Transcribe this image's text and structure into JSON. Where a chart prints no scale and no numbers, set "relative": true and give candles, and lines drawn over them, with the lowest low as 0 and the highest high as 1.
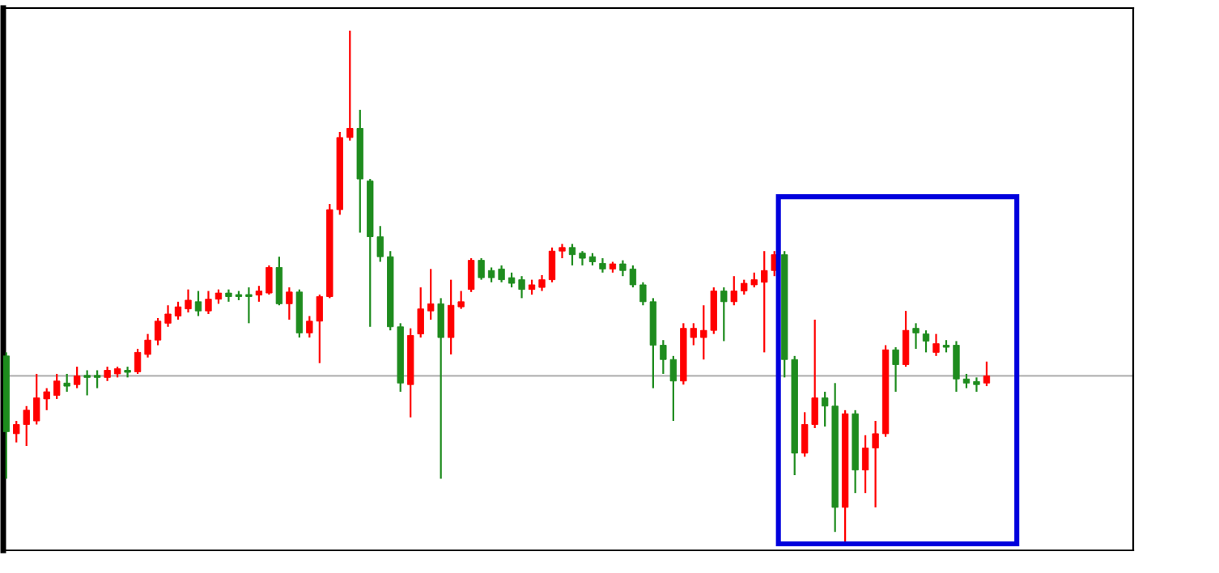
{
  "chart_data": {
    "type": "candlestick",
    "relative": true,
    "categories": [
      null,
      null,
      null,
      null,
      null,
      null,
      null,
      null,
      null,
      null,
      null,
      null,
      null,
      null,
      null,
      null,
      null,
      null,
      null,
      null,
      null,
      null,
      null,
      null,
      null,
      null,
      null,
      null,
      null,
      null,
      null,
      null,
      null,
      null,
      null,
      null,
      null,
      null,
      null,
      null,
      null,
      null,
      null,
      null,
      null,
      null,
      null,
      null,
      null,
      null,
      null,
      null,
      null,
      null,
      null,
      null,
      null,
      null,
      null,
      null,
      null,
      null,
      null,
      null,
      null,
      null,
      null,
      null,
      null,
      null,
      null,
      null,
      null,
      null,
      null,
      null,
      null,
      null,
      null,
      null,
      null,
      null,
      null,
      null,
      null,
      null,
      null,
      null,
      null,
      null,
      null,
      null,
      null,
      null,
      null,
      null,
      null,
      null
    ],
    "ohlc": [
      [
        0.364,
        0.371,
        0.124,
        0.216
      ],
      [
        0.212,
        0.237,
        0.195,
        0.23
      ],
      [
        0.23,
        0.266,
        0.188,
        0.258
      ],
      [
        0.237,
        0.329,
        0.23,
        0.282
      ],
      [
        0.28,
        0.301,
        0.258,
        0.294
      ],
      [
        0.287,
        0.329,
        0.28,
        0.315
      ],
      [
        0.311,
        0.329,
        0.294,
        0.305
      ],
      [
        0.308,
        0.343,
        0.301,
        0.325
      ],
      [
        0.326,
        0.336,
        0.287,
        0.322
      ],
      [
        0.326,
        0.336,
        0.301,
        0.322
      ],
      [
        0.322,
        0.343,
        0.315,
        0.336
      ],
      [
        0.329,
        0.343,
        0.322,
        0.339
      ],
      [
        0.336,
        0.343,
        0.322,
        0.332
      ],
      [
        0.333,
        0.378,
        0.329,
        0.371
      ],
      [
        0.367,
        0.407,
        0.361,
        0.395
      ],
      [
        0.395,
        0.438,
        0.385,
        0.432
      ],
      [
        0.428,
        0.463,
        0.421,
        0.446
      ],
      [
        0.442,
        0.47,
        0.435,
        0.46
      ],
      [
        0.456,
        0.494,
        0.449,
        0.473
      ],
      [
        0.47,
        0.491,
        0.442,
        0.452
      ],
      [
        0.452,
        0.491,
        0.446,
        0.475
      ],
      [
        0.475,
        0.494,
        0.466,
        0.487
      ],
      [
        0.487,
        0.494,
        0.47,
        0.48
      ],
      [
        0.484,
        0.491,
        0.473,
        0.48
      ],
      [
        0.484,
        0.498,
        0.428,
        0.48
      ],
      [
        0.483,
        0.501,
        0.47,
        0.491
      ],
      [
        0.487,
        0.541,
        0.484,
        0.537
      ],
      [
        0.537,
        0.558,
        0.463,
        0.466
      ],
      [
        0.466,
        0.498,
        0.435,
        0.489
      ],
      [
        0.489,
        0.494,
        0.4,
        0.409
      ],
      [
        0.409,
        0.442,
        0.4,
        0.432
      ],
      [
        0.432,
        0.484,
        0.35,
        0.48
      ],
      [
        0.48,
        0.661,
        0.477,
        0.65
      ],
      [
        0.65,
        0.802,
        0.64,
        0.791
      ],
      [
        0.791,
        1.0,
        0.785,
        0.809
      ],
      [
        0.809,
        0.845,
        0.605,
        0.71
      ],
      [
        0.706,
        0.71,
        0.421,
        0.597
      ],
      [
        0.597,
        0.618,
        0.548,
        0.558
      ],
      [
        0.558,
        0.569,
        0.414,
        0.421
      ],
      [
        0.421,
        0.428,
        0.294,
        0.311
      ],
      [
        0.308,
        0.418,
        0.244,
        0.404
      ],
      [
        0.407,
        0.498,
        0.4,
        0.456
      ],
      [
        0.452,
        0.534,
        0.435,
        0.466
      ],
      [
        0.466,
        0.477,
        0.124,
        0.4
      ],
      [
        0.4,
        0.513,
        0.367,
        0.463
      ],
      [
        0.46,
        0.491,
        0.456,
        0.47
      ],
      [
        0.494,
        0.555,
        0.489,
        0.551
      ],
      [
        0.551,
        0.555,
        0.513,
        0.517
      ],
      [
        0.531,
        0.537,
        0.508,
        0.517
      ],
      [
        0.534,
        0.541,
        0.508,
        0.513
      ],
      [
        0.517,
        0.527,
        0.498,
        0.506
      ],
      [
        0.513,
        0.52,
        0.477,
        0.494
      ],
      [
        0.494,
        0.513,
        0.484,
        0.503
      ],
      [
        0.498,
        0.522,
        0.491,
        0.513
      ],
      [
        0.513,
        0.576,
        0.508,
        0.569
      ],
      [
        0.569,
        0.583,
        0.555,
        0.576
      ],
      [
        0.576,
        0.583,
        0.541,
        0.562
      ],
      [
        0.565,
        0.569,
        0.541,
        0.555
      ],
      [
        0.558,
        0.565,
        0.541,
        0.548
      ],
      [
        0.545,
        0.555,
        0.527,
        0.534
      ],
      [
        0.534,
        0.548,
        0.527,
        0.544
      ],
      [
        0.544,
        0.551,
        0.52,
        0.531
      ],
      [
        0.534,
        0.541,
        0.498,
        0.503
      ],
      [
        0.503,
        0.508,
        0.463,
        0.47
      ],
      [
        0.47,
        0.477,
        0.301,
        0.385
      ],
      [
        0.385,
        0.395,
        0.329,
        0.357
      ],
      [
        0.357,
        0.364,
        0.237,
        0.315
      ],
      [
        0.315,
        0.428,
        0.308,
        0.418
      ],
      [
        0.4,
        0.428,
        0.385,
        0.418
      ],
      [
        0.4,
        0.463,
        0.357,
        0.414
      ],
      [
        0.414,
        0.498,
        0.407,
        0.491
      ],
      [
        0.491,
        0.498,
        0.393,
        0.47
      ],
      [
        0.47,
        0.52,
        0.463,
        0.491
      ],
      [
        0.491,
        0.513,
        0.484,
        0.506
      ],
      [
        0.503,
        0.527,
        0.498,
        0.513
      ],
      [
        0.508,
        0.569,
        0.371,
        0.531
      ],
      [
        0.531,
        0.569,
        0.52,
        0.562
      ],
      [
        0.562,
        0.569,
        0.322,
        0.357
      ],
      [
        0.357,
        0.364,
        0.131,
        0.174
      ],
      [
        0.174,
        0.254,
        0.167,
        0.23
      ],
      [
        0.23,
        0.435,
        0.223,
        0.282
      ],
      [
        0.282,
        0.294,
        0.226,
        0.266
      ],
      [
        0.266,
        0.311,
        0.02,
        0.068
      ],
      [
        0.068,
        0.258,
        0.0,
        0.251
      ],
      [
        0.251,
        0.258,
        0.096,
        0.141
      ],
      [
        0.141,
        0.209,
        0.096,
        0.184
      ],
      [
        0.184,
        0.237,
        0.068,
        0.212
      ],
      [
        0.212,
        0.385,
        0.206,
        0.376
      ],
      [
        0.376,
        0.381,
        0.294,
        0.347
      ],
      [
        0.347,
        0.452,
        0.343,
        0.414
      ],
      [
        0.418,
        0.428,
        0.378,
        0.409
      ],
      [
        0.407,
        0.414,
        0.371,
        0.393
      ],
      [
        0.371,
        0.407,
        0.364,
        0.388
      ],
      [
        0.385,
        0.395,
        0.371,
        0.381
      ],
      [
        0.385,
        0.393,
        0.294,
        0.319
      ],
      [
        0.319,
        0.329,
        0.301,
        0.311
      ],
      [
        0.314,
        0.322,
        0.294,
        0.308
      ],
      [
        0.311,
        0.353,
        0.305,
        0.325
      ]
    ],
    "colors": [
      "#1e8c1e",
      "#ff0000",
      "#ff0000",
      "#ff0000",
      "#ff0000",
      "#ff0000",
      "#1e8c1e",
      "#ff0000",
      "#1e8c1e",
      "#1e8c1e",
      "#ff0000",
      "#ff0000",
      "#1e8c1e",
      "#ff0000",
      "#ff0000",
      "#ff0000",
      "#ff0000",
      "#ff0000",
      "#ff0000",
      "#1e8c1e",
      "#ff0000",
      "#ff0000",
      "#1e8c1e",
      "#1e8c1e",
      "#1e8c1e",
      "#ff0000",
      "#ff0000",
      "#1e8c1e",
      "#ff0000",
      "#1e8c1e",
      "#ff0000",
      "#ff0000",
      "#ff0000",
      "#ff0000",
      "#ff0000",
      "#1e8c1e",
      "#1e8c1e",
      "#1e8c1e",
      "#1e8c1e",
      "#1e8c1e",
      "#ff0000",
      "#ff0000",
      "#ff0000",
      "#1e8c1e",
      "#ff0000",
      "#ff0000",
      "#ff0000",
      "#1e8c1e",
      "#1e8c1e",
      "#1e8c1e",
      "#1e8c1e",
      "#1e8c1e",
      "#ff0000",
      "#ff0000",
      "#ff0000",
      "#ff0000",
      "#1e8c1e",
      "#1e8c1e",
      "#1e8c1e",
      "#1e8c1e",
      "#ff0000",
      "#1e8c1e",
      "#1e8c1e",
      "#1e8c1e",
      "#1e8c1e",
      "#1e8c1e",
      "#1e8c1e",
      "#ff0000",
      "#ff0000",
      "#ff0000",
      "#ff0000",
      "#1e8c1e",
      "#ff0000",
      "#ff0000",
      "#ff0000",
      "#ff0000",
      "#ff0000",
      "#1e8c1e",
      "#1e8c1e",
      "#ff0000",
      "#ff0000",
      "#1e8c1e",
      "#1e8c1e",
      "#ff0000",
      "#1e8c1e",
      "#ff0000",
      "#ff0000",
      "#ff0000",
      "#1e8c1e",
      "#ff0000",
      "#1e8c1e",
      "#1e8c1e",
      "#ff0000",
      "#1e8c1e",
      "#1e8c1e",
      "#1e8c1e",
      "#1e8c1e",
      "#ff0000"
    ],
    "ref_lines": [
      {
        "axis": "y",
        "value": 0.325,
        "color": "#b4b4b4"
      }
    ]
  }
}
